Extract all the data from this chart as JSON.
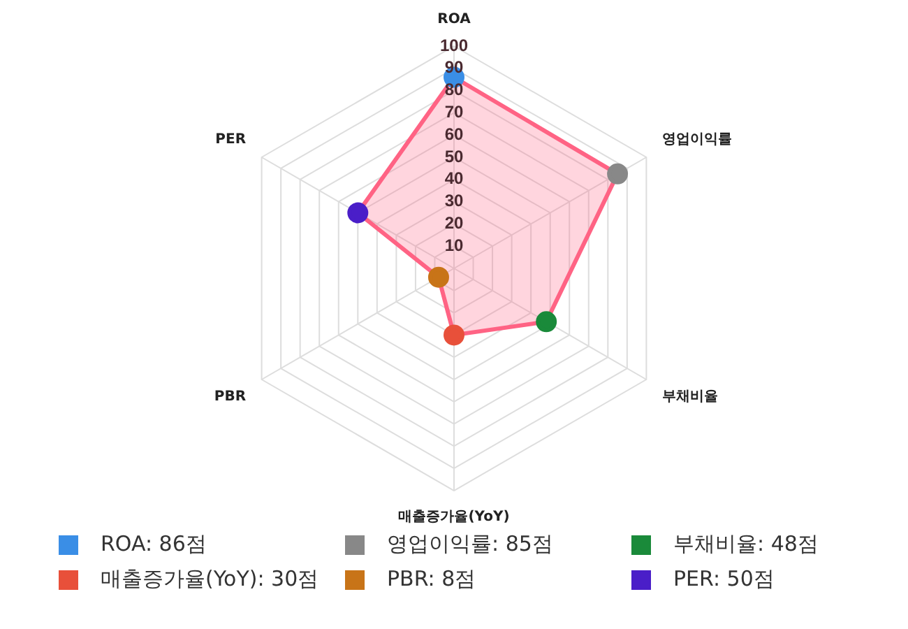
{
  "chart_data": {
    "type": "radar",
    "categories": [
      "ROA",
      "영업이익률",
      "부채비율",
      "매출증가율(YoY)",
      "PBR",
      "PER"
    ],
    "series": [
      {
        "color": "#ff6384",
        "values": [
          86,
          85,
          48,
          30,
          8,
          50
        ]
      }
    ],
    "colors": [
      "#3a8ee6",
      "#888888",
      "#1a8a3a",
      "#e8503a",
      "#c87418",
      "#4a1ec8"
    ],
    "annotations": [
      "ROA: 86점",
      "영업이익률: 85점",
      "부채비율: 48점",
      "매출증가율(YoY): 30점",
      "PBR: 8점",
      "PER: 50점"
    ],
    "ylim": [
      0,
      100
    ],
    "yticks": [
      10,
      20,
      30,
      40,
      50,
      60,
      70,
      80,
      90,
      100
    ],
    "grid": true,
    "marker": "circle"
  }
}
